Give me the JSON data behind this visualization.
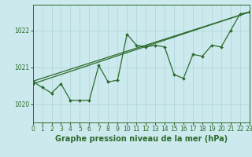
{
  "title": "Graphe pression niveau de la mer (hPa)",
  "xlabel_fontsize": 7.0,
  "bg_color": "#cceaed",
  "grid_color": "#b0d8dc",
  "line_color": "#2d6a2d",
  "marker_color": "#2d6a2d",
  "xmin": 0,
  "xmax": 23,
  "ymin": 1019.5,
  "ymax": 1022.7,
  "yticks": [
    1020,
    1021,
    1022
  ],
  "xticks": [
    0,
    1,
    2,
    3,
    4,
    5,
    6,
    7,
    8,
    9,
    10,
    11,
    12,
    13,
    14,
    15,
    16,
    17,
    18,
    19,
    20,
    21,
    22,
    23
  ],
  "series1_straight1": {
    "x": [
      0,
      23
    ],
    "y": [
      1020.62,
      1022.5
    ]
  },
  "series1_straight2": {
    "x": [
      0,
      23
    ],
    "y": [
      1020.55,
      1022.5
    ]
  },
  "series_wavy": {
    "x": [
      0,
      1,
      2,
      3,
      4,
      5,
      6,
      7,
      8,
      9,
      10,
      11,
      12,
      13,
      14,
      15,
      16,
      17,
      18,
      19,
      20,
      21,
      22,
      23
    ],
    "y": [
      1020.62,
      1020.45,
      1020.3,
      1020.55,
      1020.1,
      1020.1,
      1020.1,
      1021.05,
      1020.6,
      1020.65,
      1021.9,
      1021.6,
      1021.55,
      1021.6,
      1021.55,
      1020.8,
      1020.7,
      1021.35,
      1021.3,
      1021.6,
      1021.55,
      1022.0,
      1022.45,
      1022.5
    ]
  }
}
